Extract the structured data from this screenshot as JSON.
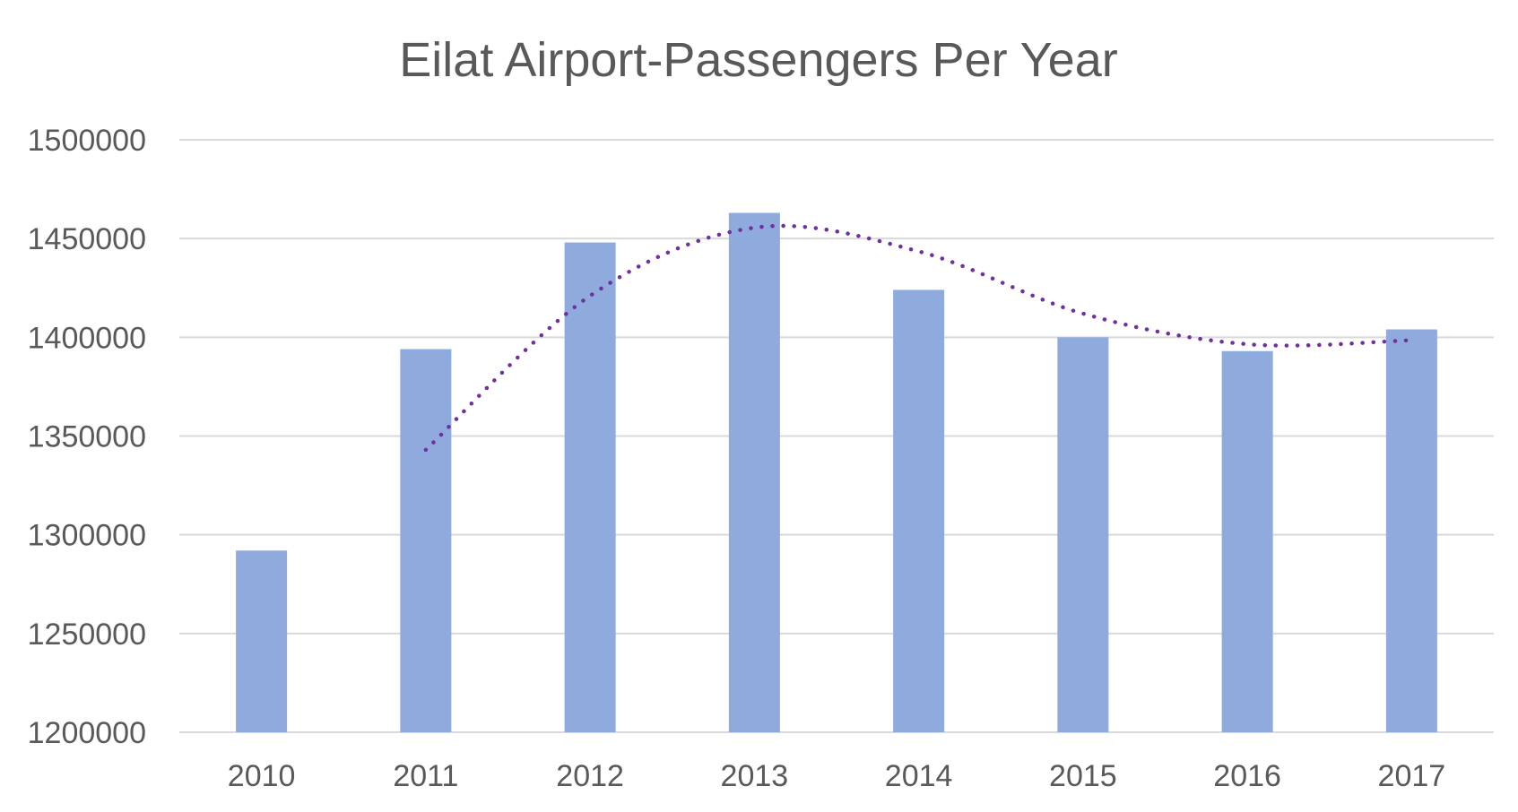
{
  "chart_data": {
    "type": "bar",
    "title": "Eilat Airport-Passengers Per Year",
    "xlabel": "",
    "ylabel": "",
    "categories": [
      "2010",
      "2011",
      "2012",
      "2013",
      "2014",
      "2015",
      "2016",
      "2017"
    ],
    "series": [
      {
        "values": [
          1292000,
          1394000,
          1448000,
          1463000,
          1424000,
          1400000,
          1393000,
          1404000
        ]
      }
    ],
    "trendline": {
      "type": "moving-average",
      "period": 2,
      "style": "dotted"
    },
    "ylim": [
      1200000,
      1500000
    ],
    "yticks": [
      "1200000",
      "1250000",
      "1300000",
      "1350000",
      "1400000",
      "1450000",
      "1500000"
    ],
    "grid": true,
    "legend": "none",
    "colors": {
      "bar": "#8faadc",
      "trendline": "#7030a0",
      "gridline": "#d9d9d9",
      "text": "#595959"
    }
  }
}
